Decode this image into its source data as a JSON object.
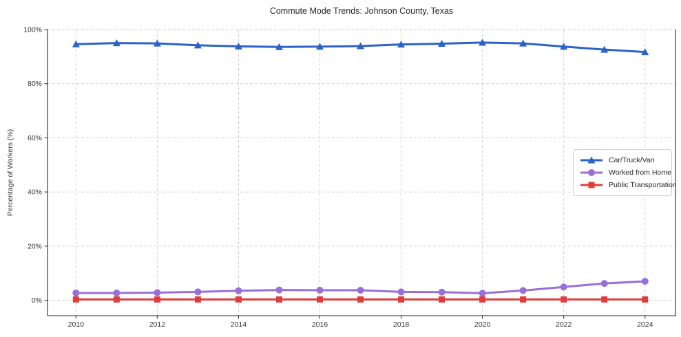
{
  "chart_data": {
    "type": "line",
    "title": "Commute Mode Trends: Johnson County, Texas",
    "xlabel": "",
    "ylabel": "Percentage of Workers (%)",
    "x": [
      2010,
      2011,
      2012,
      2013,
      2014,
      2015,
      2016,
      2017,
      2018,
      2019,
      2020,
      2021,
      2022,
      2023,
      2024
    ],
    "x_ticks": [
      2010,
      2012,
      2014,
      2016,
      2018,
      2020,
      2022,
      2024
    ],
    "x_tick_labels": [
      "2010",
      "2012",
      "2014",
      "2016",
      "2018",
      "2020",
      "2022",
      "2024"
    ],
    "y_ticks": [
      0,
      20,
      40,
      60,
      80,
      100
    ],
    "y_tick_labels": [
      "0%",
      "20%",
      "40%",
      "60%",
      "80%",
      "100%"
    ],
    "xlim": [
      2009.3,
      2024.75
    ],
    "ylim": [
      -5.7,
      100
    ],
    "grid": "dashed",
    "grid_color": "#cdcdcd",
    "spine_color": "#262626",
    "legend_position": "center right",
    "series": [
      {
        "name": "Car/Truck/Van",
        "color": "#2a62c8",
        "marker": "triangle",
        "values": [
          94.6,
          95.0,
          94.9,
          94.2,
          93.8,
          93.6,
          93.7,
          93.9,
          94.5,
          94.8,
          95.2,
          94.9,
          93.7,
          92.6,
          91.7
        ]
      },
      {
        "name": "Worked from Home",
        "color": "#976fd9",
        "marker": "circle",
        "values": [
          2.7,
          2.7,
          2.8,
          3.1,
          3.5,
          3.8,
          3.7,
          3.7,
          3.1,
          3.0,
          2.6,
          3.6,
          4.9,
          6.2,
          7.0
        ]
      },
      {
        "name": "Public Transportation",
        "color": "#e23b3b",
        "marker": "square",
        "values": [
          0.3,
          0.3,
          0.3,
          0.3,
          0.3,
          0.3,
          0.3,
          0.3,
          0.3,
          0.3,
          0.3,
          0.3,
          0.3,
          0.3,
          0.3
        ]
      }
    ]
  }
}
